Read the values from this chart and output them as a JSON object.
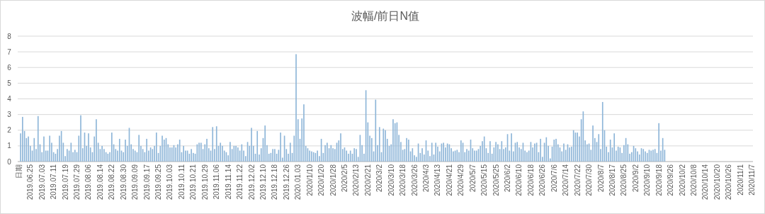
{
  "chart_data": {
    "type": "bar",
    "title": "波幅/前日N值",
    "color": "#8db5d8",
    "ylim": [
      0,
      8
    ],
    "yticks": [
      0,
      1,
      2,
      3,
      4,
      5,
      6,
      7,
      8
    ],
    "grid": "y",
    "categories": [
      "日期",
      null,
      null,
      null,
      null,
      null,
      "2019.06.25",
      null,
      null,
      null,
      null,
      null,
      "2019.07.03",
      null,
      null,
      null,
      null,
      null,
      "2019.07.11",
      null,
      null,
      null,
      null,
      null,
      "2019.07.19",
      null,
      null,
      null,
      null,
      null,
      "2019.07.29",
      null,
      null,
      null,
      null,
      null,
      "2019.08.06",
      null,
      null,
      null,
      null,
      null,
      "2019.08.14",
      null,
      null,
      null,
      null,
      null,
      "2019.08.22",
      null,
      null,
      null,
      null,
      null,
      "2019.08.30",
      null,
      null,
      null,
      null,
      null,
      "2019.09.09",
      null,
      null,
      null,
      null,
      null,
      "2019.09.17",
      null,
      null,
      null,
      null,
      null,
      "2019.09.25",
      null,
      null,
      null,
      null,
      null,
      "2019.10.03",
      null,
      null,
      null,
      null,
      null,
      "2019.10.11",
      null,
      null,
      null,
      null,
      null,
      "2019.10.21",
      null,
      null,
      null,
      null,
      null,
      "2019.10.29",
      null,
      null,
      null,
      null,
      null,
      "2019.11.06",
      null,
      null,
      null,
      null,
      null,
      "2019.11.14",
      null,
      null,
      null,
      null,
      null,
      "2019.11.22",
      null,
      null,
      null,
      null,
      null,
      "2019.12.02",
      null,
      null,
      null,
      null,
      null,
      "2019.12.10",
      null,
      null,
      null,
      null,
      null,
      "2019.12.18",
      null,
      null,
      null,
      null,
      null,
      "2019.12.26",
      null,
      null,
      null,
      null,
      null,
      "2020.01.03",
      null,
      null,
      null,
      null,
      null,
      "2020/1/10",
      null,
      null,
      null,
      null,
      null,
      "2020/1/20",
      null,
      null,
      null,
      null,
      null,
      "2020/1/28",
      null,
      null,
      null,
      null,
      null,
      "2020/2/5",
      null,
      null,
      null,
      null,
      null,
      "2020/2/13",
      null,
      null,
      null,
      null,
      null,
      "2020/2/21",
      null,
      null,
      null,
      null,
      null,
      "2020/3/2",
      null,
      null,
      null,
      null,
      null,
      "2020/3/10",
      null,
      null,
      null,
      null,
      null,
      "2020/3/18",
      null,
      null,
      null,
      null,
      null,
      "2020/3/26",
      null,
      null,
      null,
      null,
      null,
      "2020/4/3",
      null,
      null,
      null,
      null,
      null,
      "2020/4/13",
      null,
      null,
      null,
      null,
      null,
      "2020/4/21",
      null,
      null,
      null,
      null,
      null,
      "2020/4/29",
      null,
      null,
      null,
      null,
      null,
      "2020/5/7",
      null,
      null,
      null,
      null,
      null,
      "2020/5/15",
      null,
      null,
      null,
      null,
      null,
      "2020/5/25",
      null,
      null,
      null,
      null,
      null,
      "2020/6/2",
      null,
      null,
      null,
      null,
      null,
      "2020/6/10",
      null,
      null,
      null,
      null,
      null,
      "2020/6/18",
      null,
      null,
      null,
      null,
      null,
      "2020/6/26",
      null,
      null,
      null,
      null,
      null,
      "2020/7/6",
      null,
      null,
      null,
      null,
      null,
      "2020/7/14",
      null,
      null,
      null,
      null,
      null,
      "2020/7/22",
      null,
      null,
      null,
      null,
      null,
      "2020/7/30",
      null,
      null,
      null,
      null,
      null,
      "2020/8/7",
      null,
      null,
      null,
      null,
      null,
      "2020/8/17",
      null,
      null,
      null,
      null,
      null,
      "2020/8/25",
      null,
      null,
      null,
      null,
      null,
      "2020/9/2",
      null,
      null,
      null,
      null,
      null,
      "2020/9/10",
      null,
      null,
      null,
      null,
      null,
      "2020/9/18",
      null,
      null,
      null,
      null,
      null,
      "2020/9/26",
      null,
      null,
      null,
      null,
      null,
      "2020/10/2",
      null,
      null,
      null,
      null,
      null,
      "2020/10/8",
      null,
      null,
      null,
      null,
      null,
      "2020/10/14",
      null,
      null,
      null,
      null,
      null,
      "2020/10/20",
      null,
      null,
      null,
      null,
      null,
      "2020/10/26",
      null,
      null,
      null,
      null,
      null,
      "2020/11/1",
      null,
      null,
      null,
      null,
      null,
      "2020/11/7"
    ],
    "values": [
      null,
      1.8,
      2.85,
      1.95,
      1.5,
      1.6,
      1.0,
      0.7,
      1.5,
      0.8,
      2.9,
      1.1,
      0.6,
      1.6,
      0.7,
      0.7,
      1.65,
      1.2,
      0.6,
      0.5,
      0.8,
      1.65,
      1.95,
      1.2,
      0.35,
      0.8,
      0.7,
      1.2,
      0.6,
      0.75,
      0.6,
      1.65,
      2.95,
      0.85,
      1.85,
      1.0,
      1.8,
      0.9,
      0.6,
      1.6,
      2.7,
      1.2,
      0.8,
      1.0,
      0.8,
      0.6,
      0.5,
      0.6,
      1.85,
      1.1,
      0.8,
      0.7,
      1.45,
      0.7,
      0.6,
      1.4,
      1.0,
      2.15,
      1.1,
      0.8,
      0.7,
      0.6,
      1.7,
      1.0,
      0.8,
      0.6,
      1.45,
      0.7,
      0.9,
      0.8,
      1.0,
      1.85,
      0.55,
      1.0,
      1.65,
      1.4,
      1.5,
      1.1,
      0.9,
      0.9,
      1.05,
      0.9,
      1.1,
      1.4,
      0.6,
      1.0,
      0.7,
      0.7,
      0.5,
      0.8,
      0.55,
      0.5,
      1.1,
      1.2,
      1.2,
      0.8,
      1.1,
      1.45,
      0.85,
      0.7,
      2.2,
      0.8,
      2.25,
      1.0,
      1.2,
      1.0,
      0.7,
      0.6,
      0.4,
      1.25,
      0.8,
      1.0,
      1.0,
      0.9,
      0.7,
      1.1,
      0.7,
      0.35,
      1.25,
      1.0,
      2.15,
      1.0,
      0.5,
      1.95,
      0.45,
      0.85,
      1.5,
      2.3,
      1.05,
      0.5,
      0.55,
      0.8,
      0.8,
      0.5,
      0.75,
      1.85,
      0.25,
      1.65,
      0.8,
      0.5,
      1.2,
      0.55,
      1.65,
      6.85,
      2.7,
      1.45,
      2.75,
      3.65,
      1.0,
      0.85,
      0.7,
      0.65,
      0.6,
      0.55,
      0.7,
      0.35,
      1.45,
      0.55,
      1.05,
      1.2,
      0.85,
      1.05,
      0.85,
      0.8,
      1.2,
      1.35,
      1.8,
      0.8,
      0.9,
      0.7,
      0.5,
      0.7,
      0.5,
      0.85,
      0.8,
      0.3,
      1.7,
      1.05,
      0.5,
      4.55,
      2.5,
      1.65,
      1.5,
      0.65,
      3.95,
      1.05,
      2.2,
      0.6,
      2.1,
      2.0,
      1.45,
      1.0,
      1.1,
      2.7,
      2.45,
      2.5,
      1.7,
      1.25,
      0.75,
      0.8,
      1.5,
      1.4,
      0.65,
      0.85,
      0.4,
      0.3,
      1.15,
      0.55,
      0.85,
      0.45,
      1.35,
      0.7,
      0.35,
      1.2,
      0.45,
      1.2,
      0.95,
      0.65,
      1.15,
      1.2,
      0.9,
      1.15,
      1.1,
      0.85,
      0.65,
      0.7,
      0.75,
      0.6,
      1.35,
      1.2,
      0.6,
      0.8,
      0.7,
      1.4,
      0.85,
      0.7,
      0.7,
      0.8,
      1.0,
      1.3,
      1.6,
      0.85,
      0.55,
      1.3,
      0.5,
      0.9,
      1.25,
      1.1,
      0.8,
      1.3,
      0.8,
      0.9,
      1.75,
      0.7,
      1.8,
      0.65,
      1.2,
      1.25,
      0.9,
      0.8,
      1.2,
      0.7,
      0.6,
      0.7,
      1.25,
      0.9,
      1.15,
      1.2,
      0.6,
      1.45,
      0.3,
      1.2,
      1.55,
      1.0,
      0.2,
      0.95,
      1.4,
      1.45,
      1.1,
      0.9,
      0.65,
      1.15,
      0.75,
      1.1,
      0.9,
      0.95,
      2.0,
      1.85,
      1.85,
      1.6,
      2.7,
      3.2,
      1.35,
      1.1,
      1.15,
      0.75,
      2.3,
      1.5,
      1.25,
      1.75,
      0.8,
      3.8,
      2.0,
      0.95,
      0.6,
      1.4,
      0.9,
      1.8,
      0.7,
      0.95,
      0.9,
      0.55,
      1.05,
      1.5,
      1.1,
      0.5,
      0.6,
      1.0,
      0.85,
      0.65,
      0.45,
      0.85,
      0.8,
      0.65,
      0.55,
      0.75,
      0.7,
      0.75,
      0.8,
      0.55,
      2.45,
      0.7,
      1.5,
      0.75,
      null,
      null,
      null,
      null,
      null,
      null,
      null,
      null,
      null,
      null,
      null,
      null,
      null,
      null,
      null,
      null,
      null,
      null,
      null,
      null,
      null,
      null,
      null,
      null,
      null,
      null,
      null,
      null,
      null,
      null,
      null,
      null,
      null,
      null,
      null,
      null,
      null,
      null,
      null,
      null,
      null,
      null,
      null,
      null,
      null
    ]
  }
}
